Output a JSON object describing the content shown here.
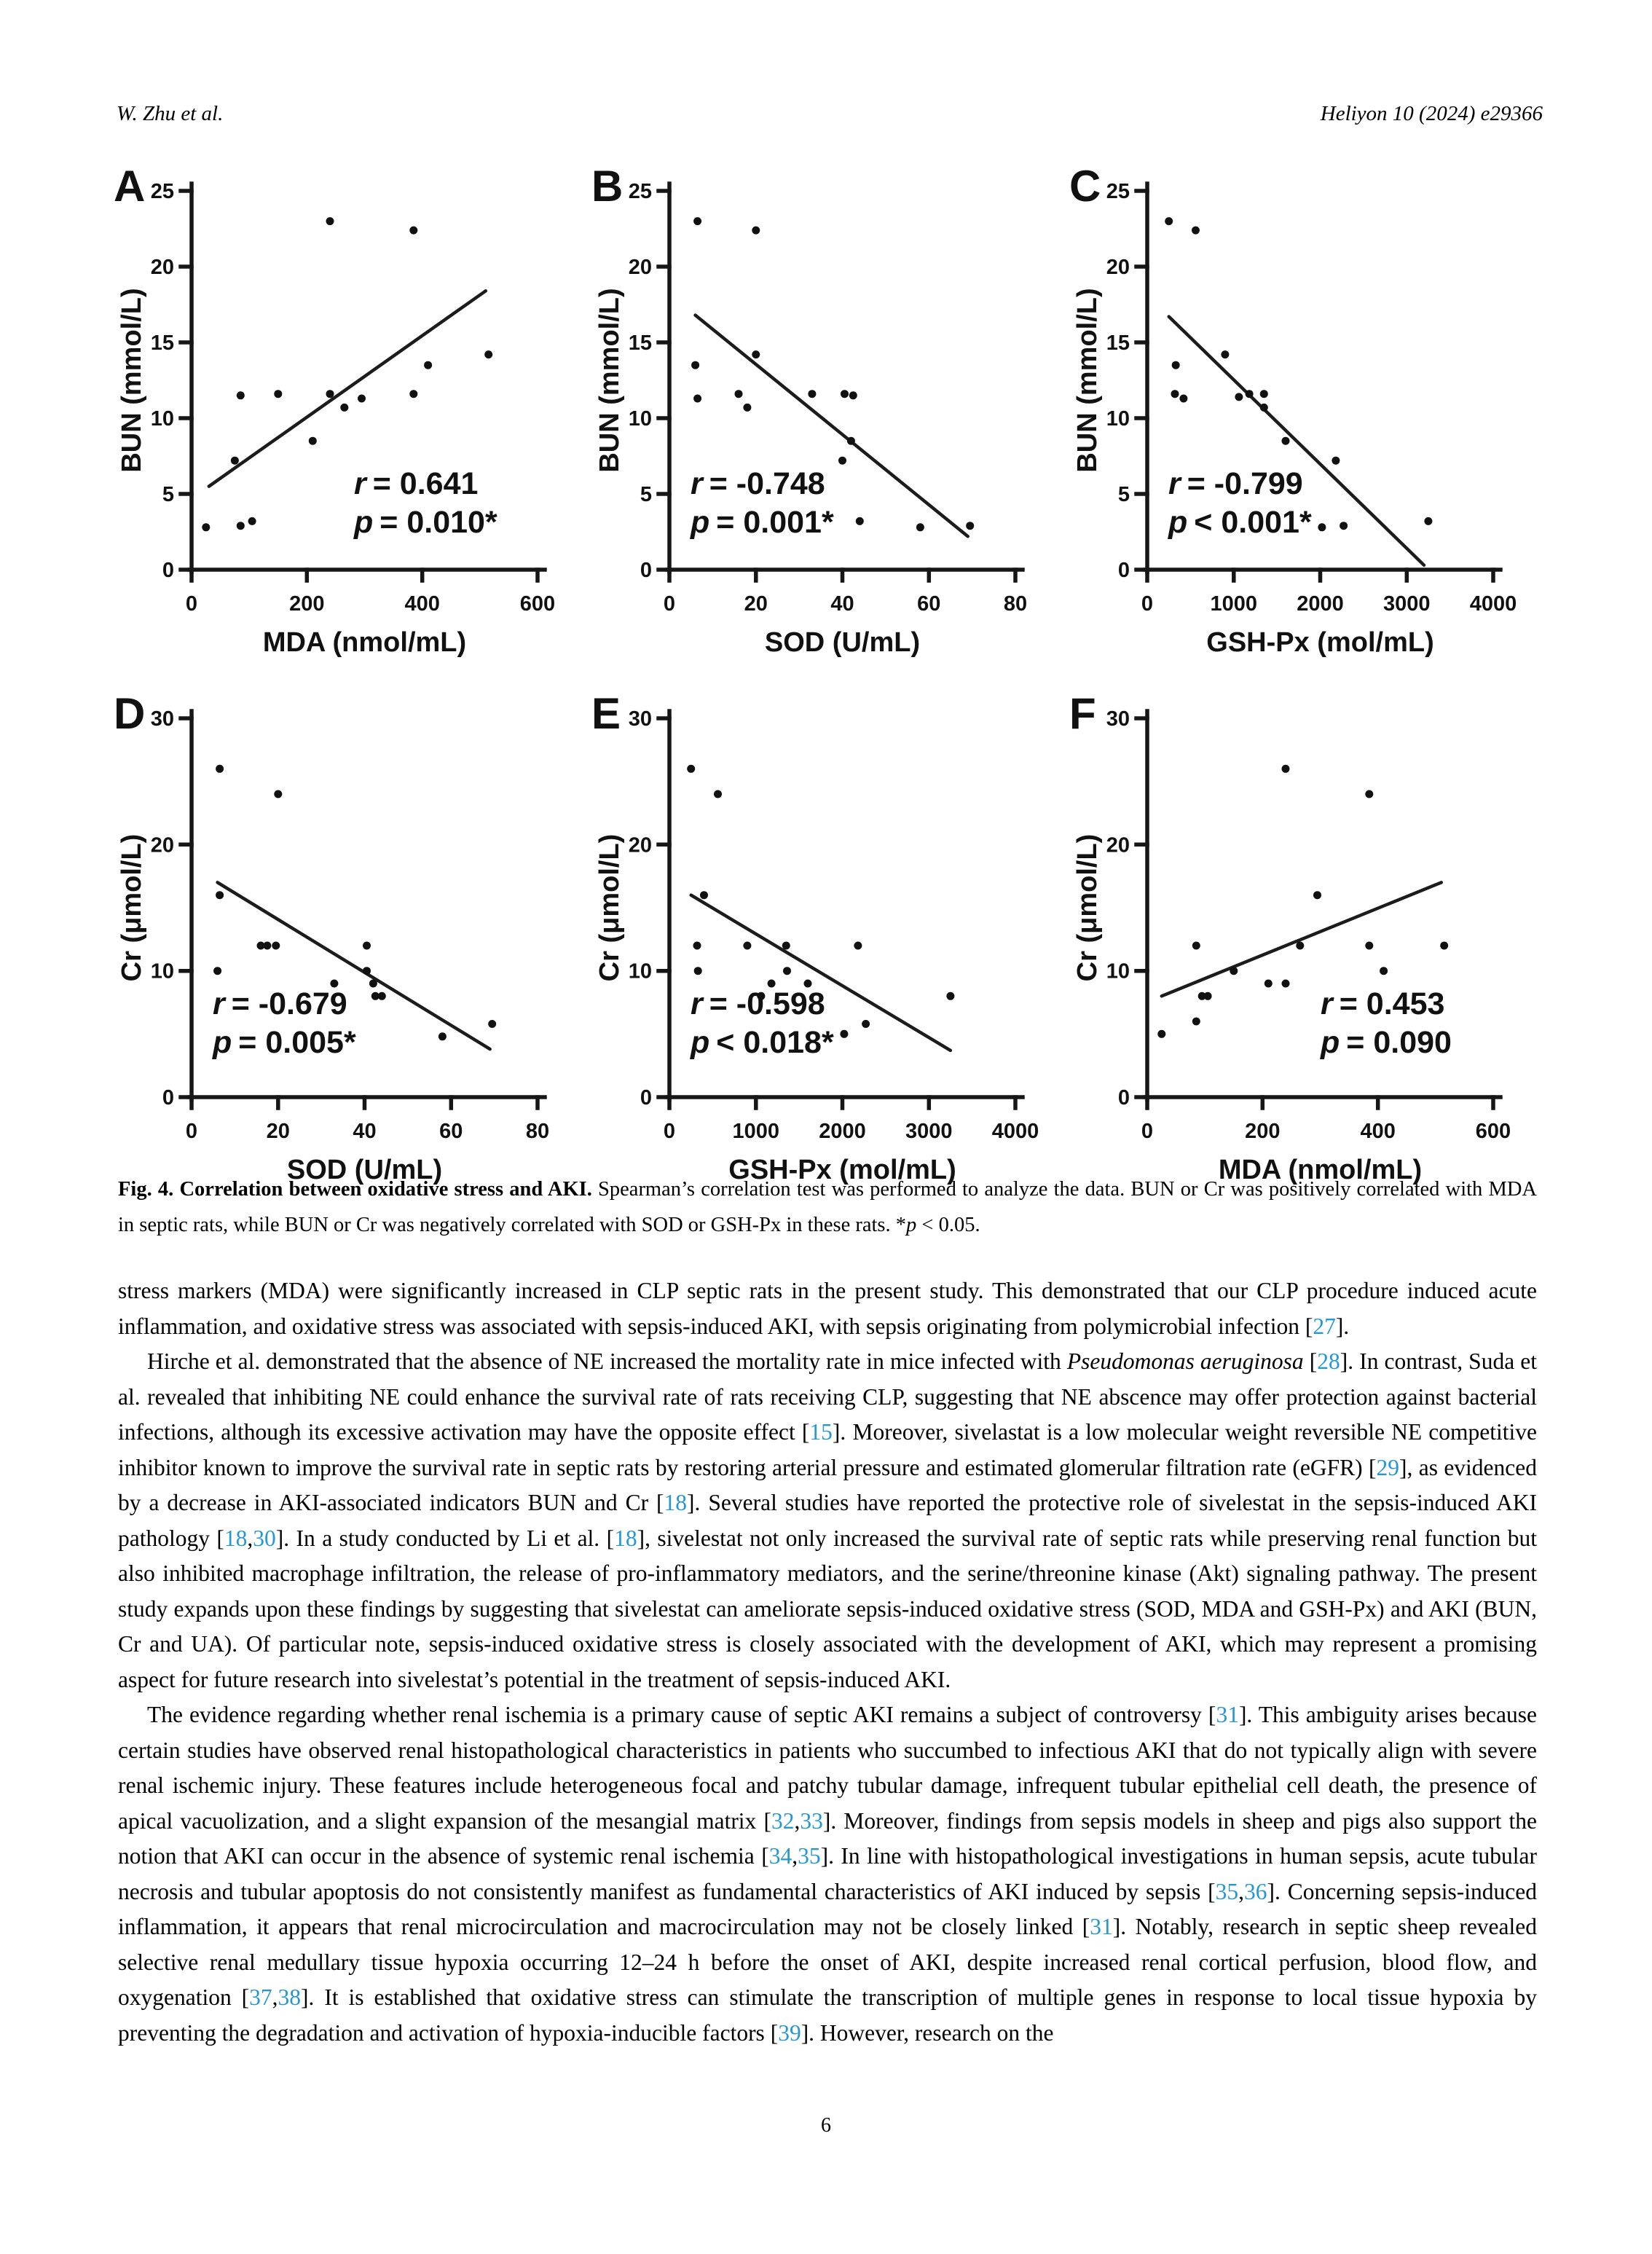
{
  "page": {
    "header_left": "W. Zhu et al.",
    "header_right": "Heliyon 10 (2024) e29366",
    "page_number": "6"
  },
  "figure": {
    "caption_segments": [
      {
        "t": "Fig. 4. Correlation between oxidative stress and AKI.",
        "s": "b"
      },
      {
        "t": " Spearman’s correlation test was performed to analyze the data. BUN or Cr was positively correlated with MDA in septic rats, while BUN or Cr was negatively correlated with SOD or GSH-Px in these rats. *"
      },
      {
        "t": "p",
        "s": "i"
      },
      {
        "t": " < 0.05."
      }
    ]
  },
  "chart_data": [
    {
      "type": "scatter",
      "panel": "A",
      "xlabel": "MDA (nmol/mL)",
      "ylabel": "BUN (mmol/L)",
      "xlim": [
        0,
        600
      ],
      "ylim": [
        0,
        25
      ],
      "xticks": [
        0,
        200,
        400,
        600
      ],
      "yticks": [
        0,
        5,
        10,
        15,
        20,
        25
      ],
      "points": [
        [
          25,
          2.8
        ],
        [
          85,
          2.9
        ],
        [
          105,
          3.2
        ],
        [
          75,
          7.2
        ],
        [
          85,
          11.5
        ],
        [
          150,
          11.6
        ],
        [
          210,
          8.5
        ],
        [
          240,
          23
        ],
        [
          240,
          11.6
        ],
        [
          265,
          10.7
        ],
        [
          295,
          11.3
        ],
        [
          385,
          22.4
        ],
        [
          385,
          11.6
        ],
        [
          410,
          13.5
        ],
        [
          515,
          14.2
        ]
      ],
      "trend": [
        [
          30,
          5.5
        ],
        [
          510,
          18.4
        ]
      ],
      "stats": [
        {
          "var": "r",
          "rest": "= 0.641"
        },
        {
          "var": "p",
          "rest": "= 0.010*"
        }
      ],
      "stats_x": 0.47,
      "stats_y": 0.8
    },
    {
      "type": "scatter",
      "panel": "B",
      "xlabel": "SOD (U/mL)",
      "ylabel": "BUN (mmol/L)",
      "xlim": [
        0,
        80
      ],
      "ylim": [
        0,
        25
      ],
      "xticks": [
        0,
        20,
        40,
        60,
        80
      ],
      "yticks": [
        0,
        5,
        10,
        15,
        20,
        25
      ],
      "points": [
        [
          6.5,
          23
        ],
        [
          20,
          22.4
        ],
        [
          6,
          13.5
        ],
        [
          6.5,
          11.3
        ],
        [
          16,
          11.6
        ],
        [
          18,
          10.7
        ],
        [
          20,
          14.2
        ],
        [
          33,
          11.6
        ],
        [
          40.5,
          11.6
        ],
        [
          42.5,
          11.5
        ],
        [
          42,
          8.5
        ],
        [
          40,
          7.2
        ],
        [
          44,
          3.2
        ],
        [
          58,
          2.8
        ],
        [
          69.5,
          2.9
        ]
      ],
      "trend": [
        [
          6,
          16.8
        ],
        [
          69,
          2.2
        ]
      ],
      "stats": [
        {
          "var": "r",
          "rest": "= -0.748"
        },
        {
          "var": "p",
          "rest": "= 0.001*"
        }
      ],
      "stats_x": 0.06,
      "stats_y": 0.8
    },
    {
      "type": "scatter",
      "panel": "C",
      "xlabel": "GSH-Px (mol/mL)",
      "ylabel": "BUN (mmol/L)",
      "xlim": [
        0,
        4000
      ],
      "ylim": [
        0,
        25
      ],
      "xticks": [
        0,
        1000,
        2000,
        3000,
        4000
      ],
      "yticks": [
        0,
        5,
        10,
        15,
        20,
        25
      ],
      "points": [
        [
          250,
          23
        ],
        [
          560,
          22.4
        ],
        [
          330,
          13.5
        ],
        [
          320,
          11.6
        ],
        [
          420,
          11.3
        ],
        [
          900,
          14.2
        ],
        [
          1060,
          11.4
        ],
        [
          1180,
          11.6
        ],
        [
          1350,
          11.6
        ],
        [
          1350,
          10.7
        ],
        [
          1600,
          8.5
        ],
        [
          2180,
          7.2
        ],
        [
          2020,
          2.8
        ],
        [
          2270,
          2.9
        ],
        [
          3250,
          3.2
        ]
      ],
      "trend": [
        [
          250,
          16.7
        ],
        [
          3200,
          0.3
        ]
      ],
      "stats": [
        {
          "var": "r",
          "rest": "= -0.799"
        },
        {
          "var": "p",
          "rest": "< 0.001*"
        }
      ],
      "stats_x": 0.06,
      "stats_y": 0.8
    },
    {
      "type": "scatter",
      "panel": "D",
      "xlabel": "SOD (U/mL)",
      "ylabel": "Cr (μmol/L)",
      "xlim": [
        0,
        80
      ],
      "ylim": [
        0,
        30
      ],
      "xticks": [
        0,
        20,
        40,
        60,
        80
      ],
      "yticks": [
        0,
        10,
        20,
        30
      ],
      "points": [
        [
          6.5,
          26
        ],
        [
          20,
          24
        ],
        [
          6.5,
          16
        ],
        [
          16,
          12
        ],
        [
          17.5,
          12
        ],
        [
          19.5,
          12
        ],
        [
          6,
          10
        ],
        [
          40.5,
          12
        ],
        [
          40.5,
          10
        ],
        [
          33,
          9
        ],
        [
          42,
          9
        ],
        [
          42.5,
          8
        ],
        [
          44,
          8
        ],
        [
          58,
          4.8
        ],
        [
          69.5,
          5.8
        ]
      ],
      "trend": [
        [
          6,
          17
        ],
        [
          69,
          3.8
        ]
      ],
      "stats": [
        {
          "var": "r",
          "rest": "= -0.679"
        },
        {
          "var": "p",
          "rest": "= 0.005*"
        }
      ],
      "stats_x": 0.06,
      "stats_y": 0.78
    },
    {
      "type": "scatter",
      "panel": "E",
      "xlabel": "GSH-Px (mol/mL)",
      "ylabel": "Cr (μmol/L)",
      "xlim": [
        0,
        4000
      ],
      "ylim": [
        0,
        30
      ],
      "xticks": [
        0,
        1000,
        2000,
        3000,
        4000
      ],
      "yticks": [
        0,
        10,
        20,
        30
      ],
      "points": [
        [
          250,
          26
        ],
        [
          560,
          24
        ],
        [
          400,
          16
        ],
        [
          320,
          12
        ],
        [
          330,
          10
        ],
        [
          900,
          12
        ],
        [
          1060,
          8
        ],
        [
          1180,
          9
        ],
        [
          1350,
          12
        ],
        [
          1360,
          10
        ],
        [
          1600,
          9
        ],
        [
          2180,
          12
        ],
        [
          2020,
          5
        ],
        [
          2270,
          5.8
        ],
        [
          3250,
          8
        ]
      ],
      "trend": [
        [
          250,
          16
        ],
        [
          3250,
          3.7
        ]
      ],
      "stats": [
        {
          "var": "r",
          "rest": "= -0.598"
        },
        {
          "var": "p",
          "rest": "< 0.018*"
        }
      ],
      "stats_x": 0.06,
      "stats_y": 0.78
    },
    {
      "type": "scatter",
      "panel": "F",
      "xlabel": "MDA (nmol/mL)",
      "ylabel": "Cr (μmol/L)",
      "xlim": [
        0,
        600
      ],
      "ylim": [
        0,
        30
      ],
      "xticks": [
        0,
        200,
        400,
        600
      ],
      "yticks": [
        0,
        10,
        20,
        30
      ],
      "points": [
        [
          25,
          5
        ],
        [
          85,
          6
        ],
        [
          95,
          8
        ],
        [
          105,
          8
        ],
        [
          85,
          12
        ],
        [
          150,
          10
        ],
        [
          210,
          9
        ],
        [
          240,
          9
        ],
        [
          240,
          26
        ],
        [
          265,
          12
        ],
        [
          295,
          16
        ],
        [
          385,
          24
        ],
        [
          385,
          12
        ],
        [
          410,
          10
        ],
        [
          515,
          12
        ]
      ],
      "trend": [
        [
          25,
          8
        ],
        [
          510,
          17
        ]
      ],
      "stats": [
        {
          "var": "r",
          "rest": "= 0.453"
        },
        {
          "var": "p",
          "rest": "= 0.090"
        }
      ],
      "stats_x": 0.5,
      "stats_y": 0.78
    }
  ],
  "body": {
    "paragraphs": [
      {
        "indent": false,
        "segments": [
          {
            "t": "stress markers (MDA) were significantly increased in CLP septic rats in the present study. This demonstrated that our CLP procedure induced acute inflammation, and oxidative stress was associated with sepsis-induced AKI, with sepsis originating from polymicrobial infection ["
          },
          {
            "t": "27",
            "s": "cite"
          },
          {
            "t": "]."
          }
        ]
      },
      {
        "indent": true,
        "segments": [
          {
            "t": "Hirche et al. demonstrated that the absence of NE increased the mortality rate in mice infected with "
          },
          {
            "t": "Pseudomonas aeruginosa",
            "s": "i"
          },
          {
            "t": " ["
          },
          {
            "t": "28",
            "s": "cite"
          },
          {
            "t": "]. In contrast, Suda et al. revealed that inhibiting NE could enhance the survival rate of rats receiving CLP, suggesting that NE abscence may offer protection against bacterial infections, although its excessive activation may have the opposite effect ["
          },
          {
            "t": "15",
            "s": "cite"
          },
          {
            "t": "]. Moreover, sivelastat is a low molecular weight reversible NE competitive inhibitor known to improve the survival rate in septic rats by restoring arterial pressure and estimated glomerular filtration rate (eGFR) ["
          },
          {
            "t": "29",
            "s": "cite"
          },
          {
            "t": "], as evidenced by a decrease in AKI-associated indicators BUN and Cr ["
          },
          {
            "t": "18",
            "s": "cite"
          },
          {
            "t": "]. Several studies have reported the protective role of sivelestat in the sepsis-induced AKI pathology ["
          },
          {
            "t": "18",
            "s": "cite"
          },
          {
            "t": ","
          },
          {
            "t": "30",
            "s": "cite"
          },
          {
            "t": "]. In a study conducted by Li et al. ["
          },
          {
            "t": "18",
            "s": "cite"
          },
          {
            "t": "], sivelestat not only increased the survival rate of septic rats while preserving renal function but also inhibited macrophage infiltration, the release of pro-inflammatory mediators, and the serine/threonine kinase (Akt) signaling pathway. The present study expands upon these findings by suggesting that sivelestat can ameliorate sepsis-induced oxidative stress (SOD, MDA and GSH-Px) and AKI (BUN, Cr and UA). Of particular note, sepsis-induced oxidative stress is closely associated with the development of AKI, which may represent a promising aspect for future research into sivelestat’s potential in the treatment of sepsis-induced AKI."
          }
        ]
      },
      {
        "indent": true,
        "segments": [
          {
            "t": "The evidence regarding whether renal ischemia is a primary cause of septic AKI remains a subject of controversy ["
          },
          {
            "t": "31",
            "s": "cite"
          },
          {
            "t": "]. This ambiguity arises because certain studies have observed renal histopathological characteristics in patients who succumbed to infectious AKI that do not typically align with severe renal ischemic injury. These features include heterogeneous focal and patchy tubular damage, infrequent tubular epithelial cell death, the presence of apical vacuolization, and a slight expansion of the mesangial matrix ["
          },
          {
            "t": "32",
            "s": "cite"
          },
          {
            "t": ","
          },
          {
            "t": "33",
            "s": "cite"
          },
          {
            "t": "]. Moreover, findings from sepsis models in sheep and pigs also support the notion that AKI can occur in the absence of systemic renal ischemia ["
          },
          {
            "t": "34",
            "s": "cite"
          },
          {
            "t": ","
          },
          {
            "t": "35",
            "s": "cite"
          },
          {
            "t": "]. In line with histopathological investigations in human sepsis, acute tubular necrosis and tubular apoptosis do not consistently manifest as fundamental characteristics of AKI induced by sepsis ["
          },
          {
            "t": "35",
            "s": "cite"
          },
          {
            "t": ","
          },
          {
            "t": "36",
            "s": "cite"
          },
          {
            "t": "]. Concerning sepsis-induced inflammation, it appears that renal microcirculation and macrocirculation may not be closely linked ["
          },
          {
            "t": "31",
            "s": "cite"
          },
          {
            "t": "]. Notably, research in septic sheep revealed selective renal medullary tissue hypoxia occurring 12–24 h before the onset of AKI, despite increased renal cortical perfusion, blood flow, and oxygenation ["
          },
          {
            "t": "37",
            "s": "cite"
          },
          {
            "t": ","
          },
          {
            "t": "38",
            "s": "cite"
          },
          {
            "t": "]. It is established that oxidative stress can stimulate the transcription of multiple genes in response to local tissue hypoxia by preventing the degradation and activation of hypoxia-inducible factors ["
          },
          {
            "t": "39",
            "s": "cite"
          },
          {
            "t": "]. However, research on the"
          }
        ]
      }
    ]
  }
}
